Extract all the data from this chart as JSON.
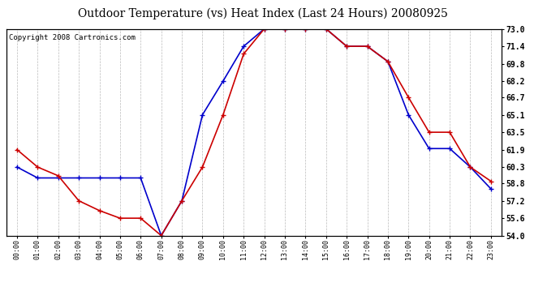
{
  "title": "Outdoor Temperature (vs) Heat Index (Last 24 Hours) 20080925",
  "copyright": "Copyright 2008 Cartronics.com",
  "hours": [
    "00:00",
    "01:00",
    "02:00",
    "03:00",
    "04:00",
    "05:00",
    "06:00",
    "07:00",
    "08:00",
    "09:00",
    "10:00",
    "11:00",
    "12:00",
    "13:00",
    "14:00",
    "15:00",
    "16:00",
    "17:00",
    "18:00",
    "19:00",
    "20:00",
    "21:00",
    "22:00",
    "23:00"
  ],
  "temp": [
    61.9,
    60.3,
    59.5,
    57.2,
    56.3,
    55.6,
    55.6,
    54.0,
    57.2,
    60.3,
    65.1,
    70.7,
    73.0,
    73.0,
    73.0,
    73.0,
    71.4,
    71.4,
    70.0,
    66.7,
    63.5,
    63.5,
    60.3,
    59.0
  ],
  "heat_index": [
    60.3,
    59.3,
    59.3,
    59.3,
    59.3,
    59.3,
    59.3,
    54.0,
    57.2,
    65.1,
    68.2,
    71.4,
    73.0,
    73.0,
    73.0,
    73.0,
    71.4,
    71.4,
    70.0,
    65.1,
    62.0,
    62.0,
    60.3,
    58.3
  ],
  "temp_color": "#cc0000",
  "heat_index_color": "#0000cc",
  "bg_color": "#ffffff",
  "grid_color": "#bbbbbb",
  "ymin": 54.0,
  "ymax": 73.0,
  "yticks": [
    54.0,
    55.6,
    57.2,
    58.8,
    60.3,
    61.9,
    63.5,
    65.1,
    66.7,
    68.2,
    69.8,
    71.4,
    73.0
  ],
  "title_fontsize": 10,
  "copyright_fontsize": 6.5
}
